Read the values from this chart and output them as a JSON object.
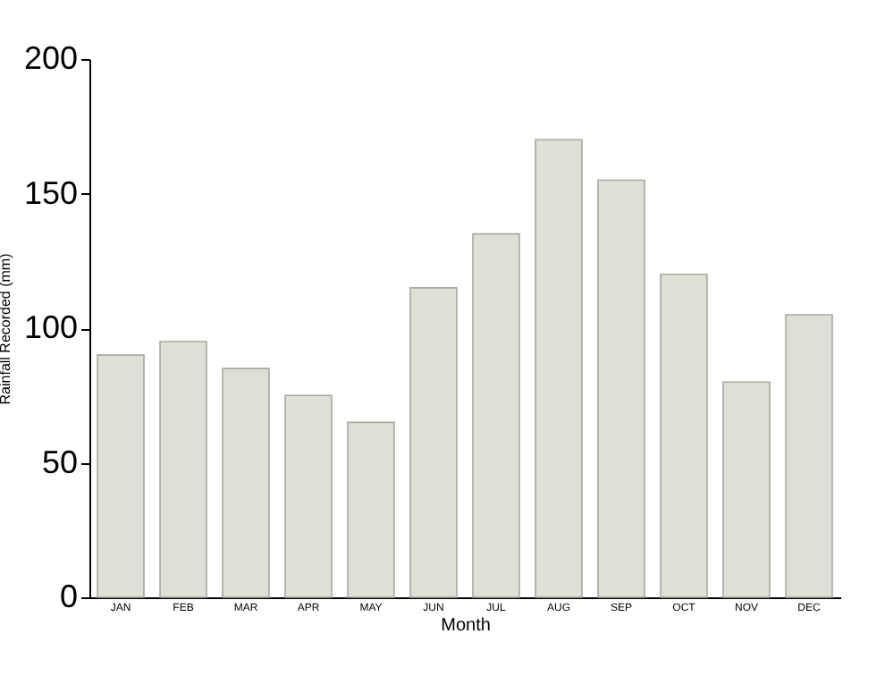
{
  "chart_data": {
    "type": "bar",
    "xlabel": "Month",
    "ylabel": "Rainfall Recorded (mm)",
    "categories": [
      "JAN",
      "FEB",
      "MAR",
      "APR",
      "MAY",
      "JUN",
      "JUL",
      "AUG",
      "SEP",
      "OCT",
      "NOV",
      "DEC"
    ],
    "values": [
      90,
      95,
      85,
      75,
      65,
      115,
      135,
      170,
      155,
      120,
      80,
      105
    ],
    "color": "#e0dfd5",
    "ylim": [
      0,
      200
    ],
    "yticks": [
      0,
      50,
      100,
      150,
      200
    ],
    "grid": false
  }
}
